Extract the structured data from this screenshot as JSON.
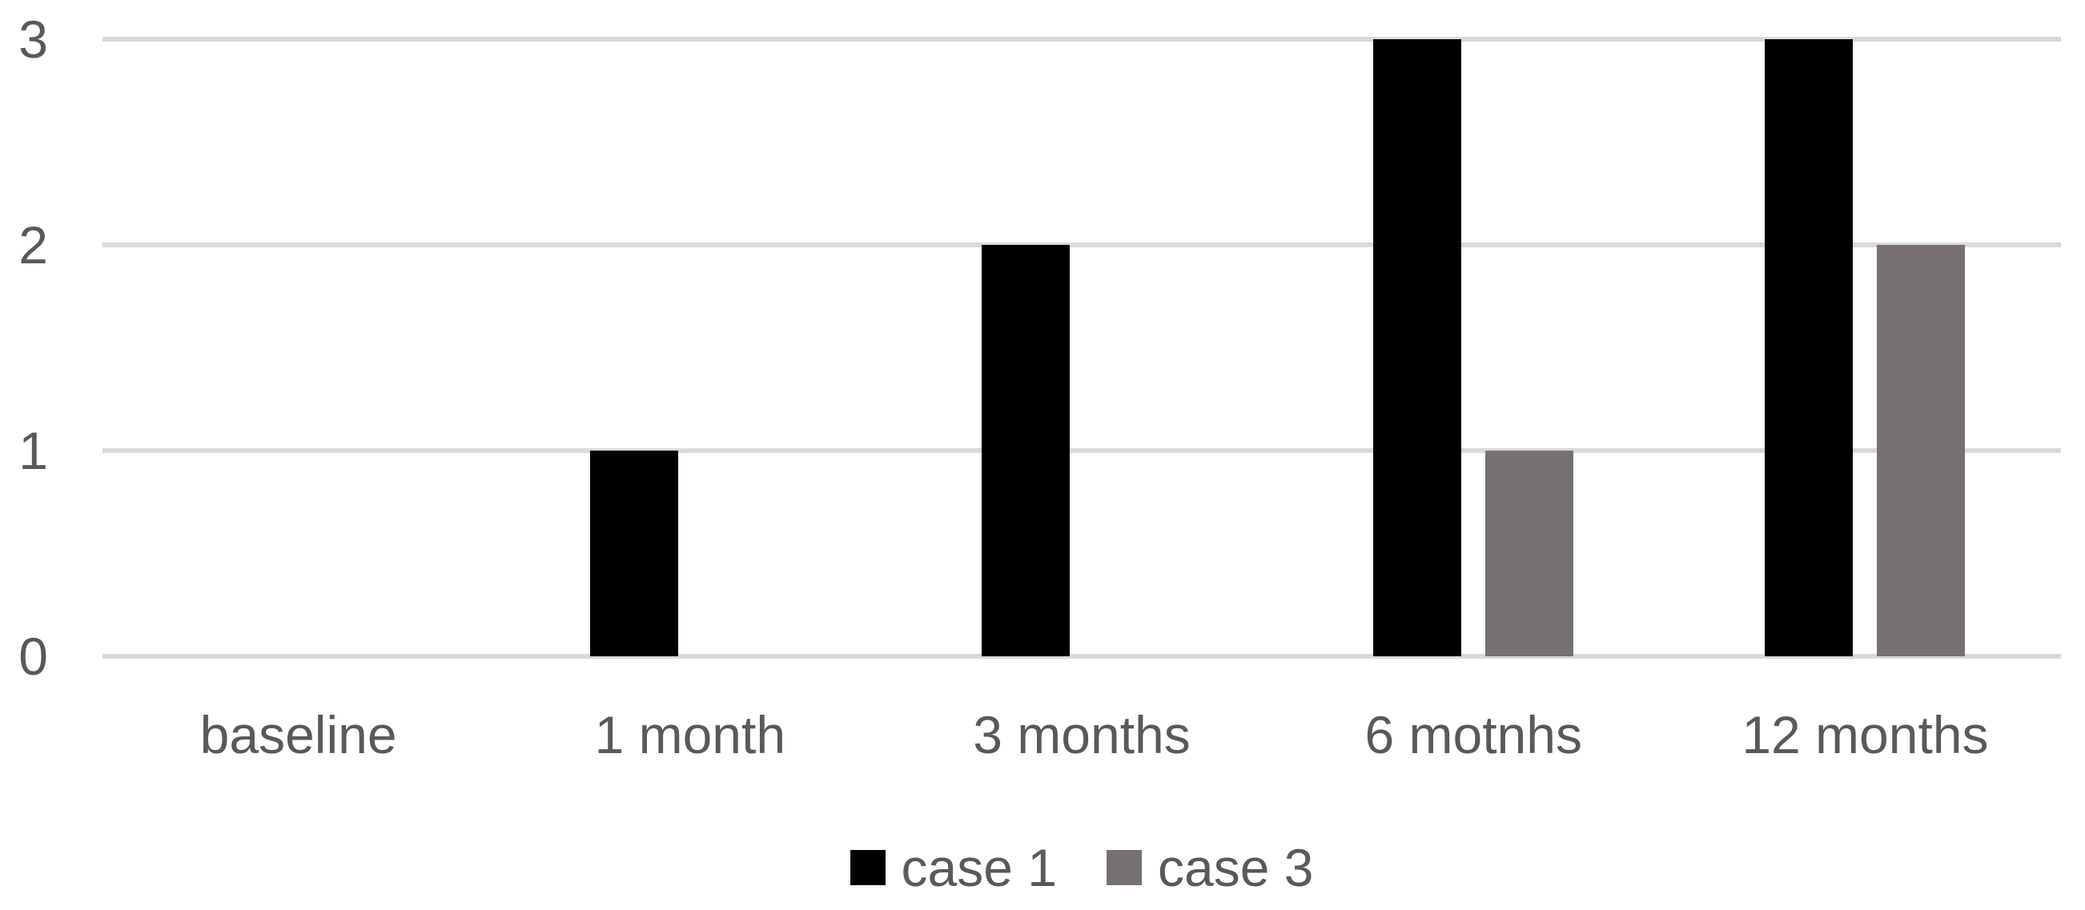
{
  "chart_data": {
    "type": "bar",
    "title": "",
    "categories": [
      "baseline",
      "1 month",
      "3 months",
      "6 motnhs",
      "12 months"
    ],
    "series": [
      {
        "name": "case 1",
        "color": "#000000",
        "values": [
          0,
          1,
          2,
          3,
          3
        ]
      },
      {
        "name": "case 3",
        "color": "#767171",
        "values": [
          0,
          0,
          0,
          1,
          2
        ]
      }
    ],
    "xlabel": "",
    "ylabel": "",
    "y_ticks": [
      "0",
      "1",
      "2",
      "3"
    ],
    "ylim": [
      0,
      3
    ],
    "grid": true,
    "legend_position": "bottom",
    "colors": {
      "background": "#FFFFFF",
      "gridline": "#D9D9D9",
      "axis_line": "#D9D9D9",
      "tick_text": "#595959"
    }
  }
}
